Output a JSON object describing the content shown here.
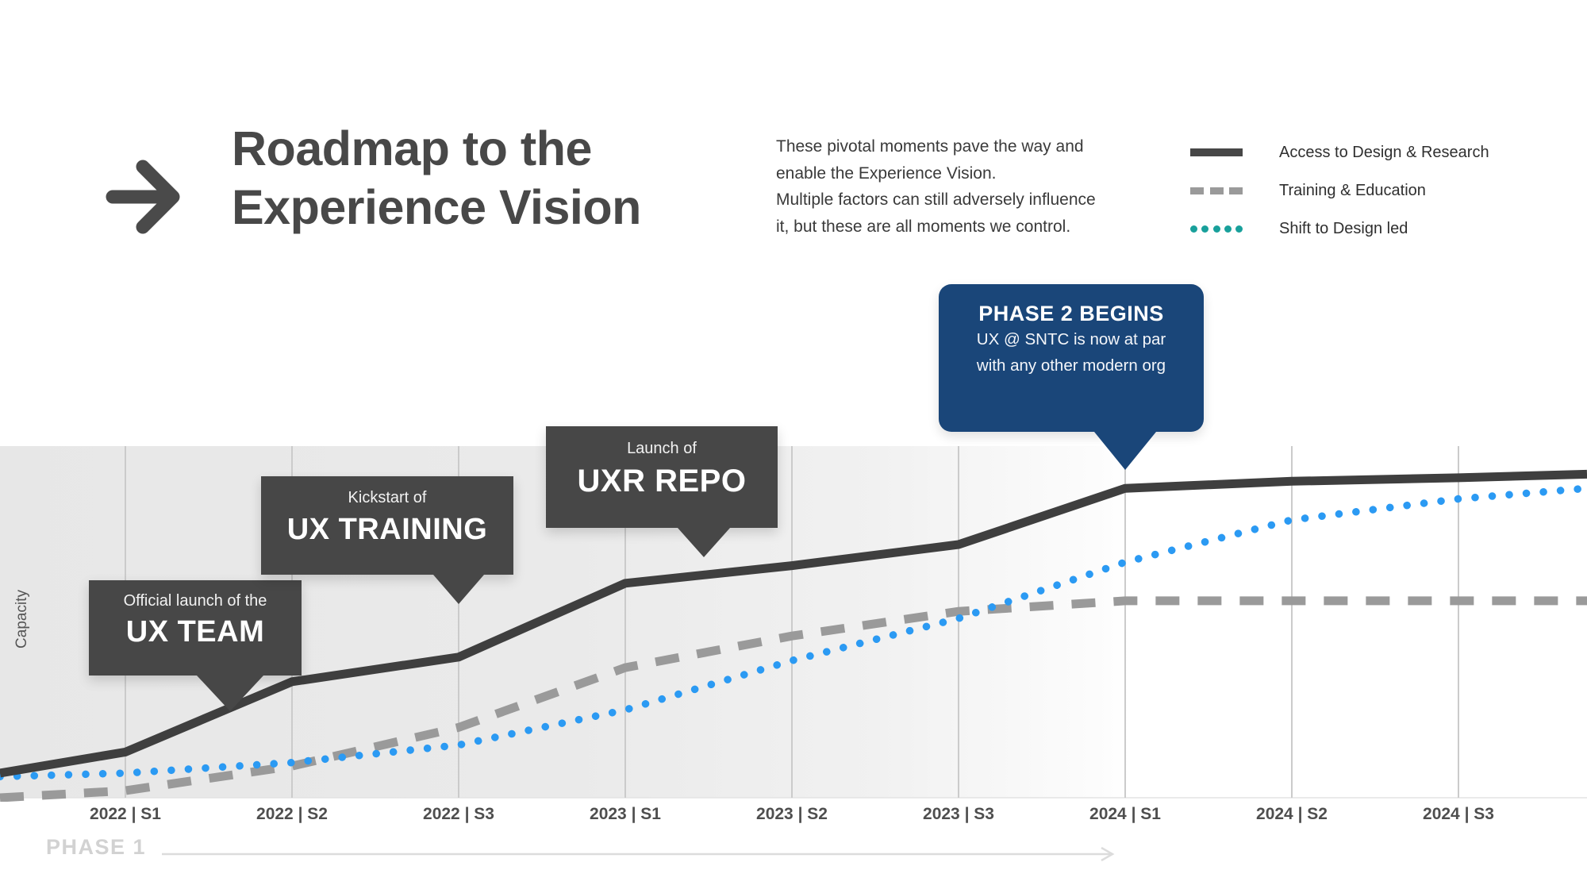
{
  "header": {
    "title_line1": "Roadmap to the",
    "title_line2": "Experience Vision",
    "description_lines": [
      "These pivotal moments pave the way and",
      "enable the Experience Vision.",
      "Multiple factors can still adversely influence",
      "it, but these are all moments we control."
    ]
  },
  "legend": {
    "items": [
      {
        "label": "Access to Design & Research",
        "style": "solid",
        "swatch_color": "#474747"
      },
      {
        "label": "Training & Education",
        "style": "dashed",
        "swatch_color": "#9a9a9a"
      },
      {
        "label": "Shift to Design led",
        "style": "dotted",
        "swatch_color": "#18a09b"
      }
    ]
  },
  "chart_data": {
    "type": "line",
    "title": "Roadmap to the Experience Vision",
    "xlabel": "",
    "ylabel": "Capacity",
    "categories": [
      "2022 | S1",
      "2022 | S2",
      "2022 | S3",
      "2023 | S1",
      "2023 | S2",
      "2023 | S3",
      "2024 | S1",
      "2024 | S2",
      "2024 | S3"
    ],
    "y_axis_note": "unlabeled relative capacity, estimated 0-100",
    "ylim": [
      0,
      100
    ],
    "grid": "vertical gridline at each semester",
    "legend_position": "top-right",
    "shaded_region": {
      "from": "start",
      "to": "2024 | S1",
      "label": "PHASE 1",
      "color": "#e7e7e7"
    },
    "series": [
      {
        "name": "Access to Design & Research",
        "style": "solid",
        "color": "#3f3f3f",
        "start_value": 7,
        "values": [
          13,
          33,
          40,
          61,
          66,
          72,
          88,
          90,
          91
        ],
        "end_value": 92
      },
      {
        "name": "Training & Education",
        "style": "dashed",
        "color": "#9a9a9a",
        "start_value": 0,
        "values": [
          2,
          9,
          20,
          37,
          46,
          53,
          56,
          56,
          56
        ],
        "end_value": 56
      },
      {
        "name": "Shift to Design led",
        "style": "dotted",
        "color": "#2b9af3",
        "start_value": 6,
        "values": [
          7,
          10,
          15,
          25,
          39,
          51,
          67,
          79,
          85
        ],
        "end_value": 88
      }
    ],
    "annotations": [
      {
        "anchor": "between 2022 | S1 and 2022 | S2",
        "kicker": "Official launch of the",
        "label": "UX TEAM"
      },
      {
        "anchor": "2022 | S3",
        "kicker": "Kickstart of",
        "label": "UX TRAINING"
      },
      {
        "anchor": "between 2023 | S1 and 2023 | S2",
        "kicker": "Launch of",
        "label": "UXR REPO"
      },
      {
        "anchor": "2024 | S1",
        "kicker": "PHASE 2 BEGINS",
        "label": "UX @ SNTC is now at par with any other modern org"
      }
    ]
  },
  "callouts": {
    "ux_team": {
      "line1": "Official launch of the",
      "line2": "UX TEAM"
    },
    "ux_training": {
      "line1": "Kickstart of",
      "line2": "UX TRAINING"
    },
    "uxr_repo": {
      "line1": "Launch of",
      "line2": "UXR REPO"
    },
    "phase2": {
      "title": "PHASE 2 BEGINS",
      "line1": "UX @ SNTC is now at par",
      "line2": "with any other modern org",
      "color": "#1a4679"
    }
  },
  "footer": {
    "phase_label": "PHASE 1"
  }
}
